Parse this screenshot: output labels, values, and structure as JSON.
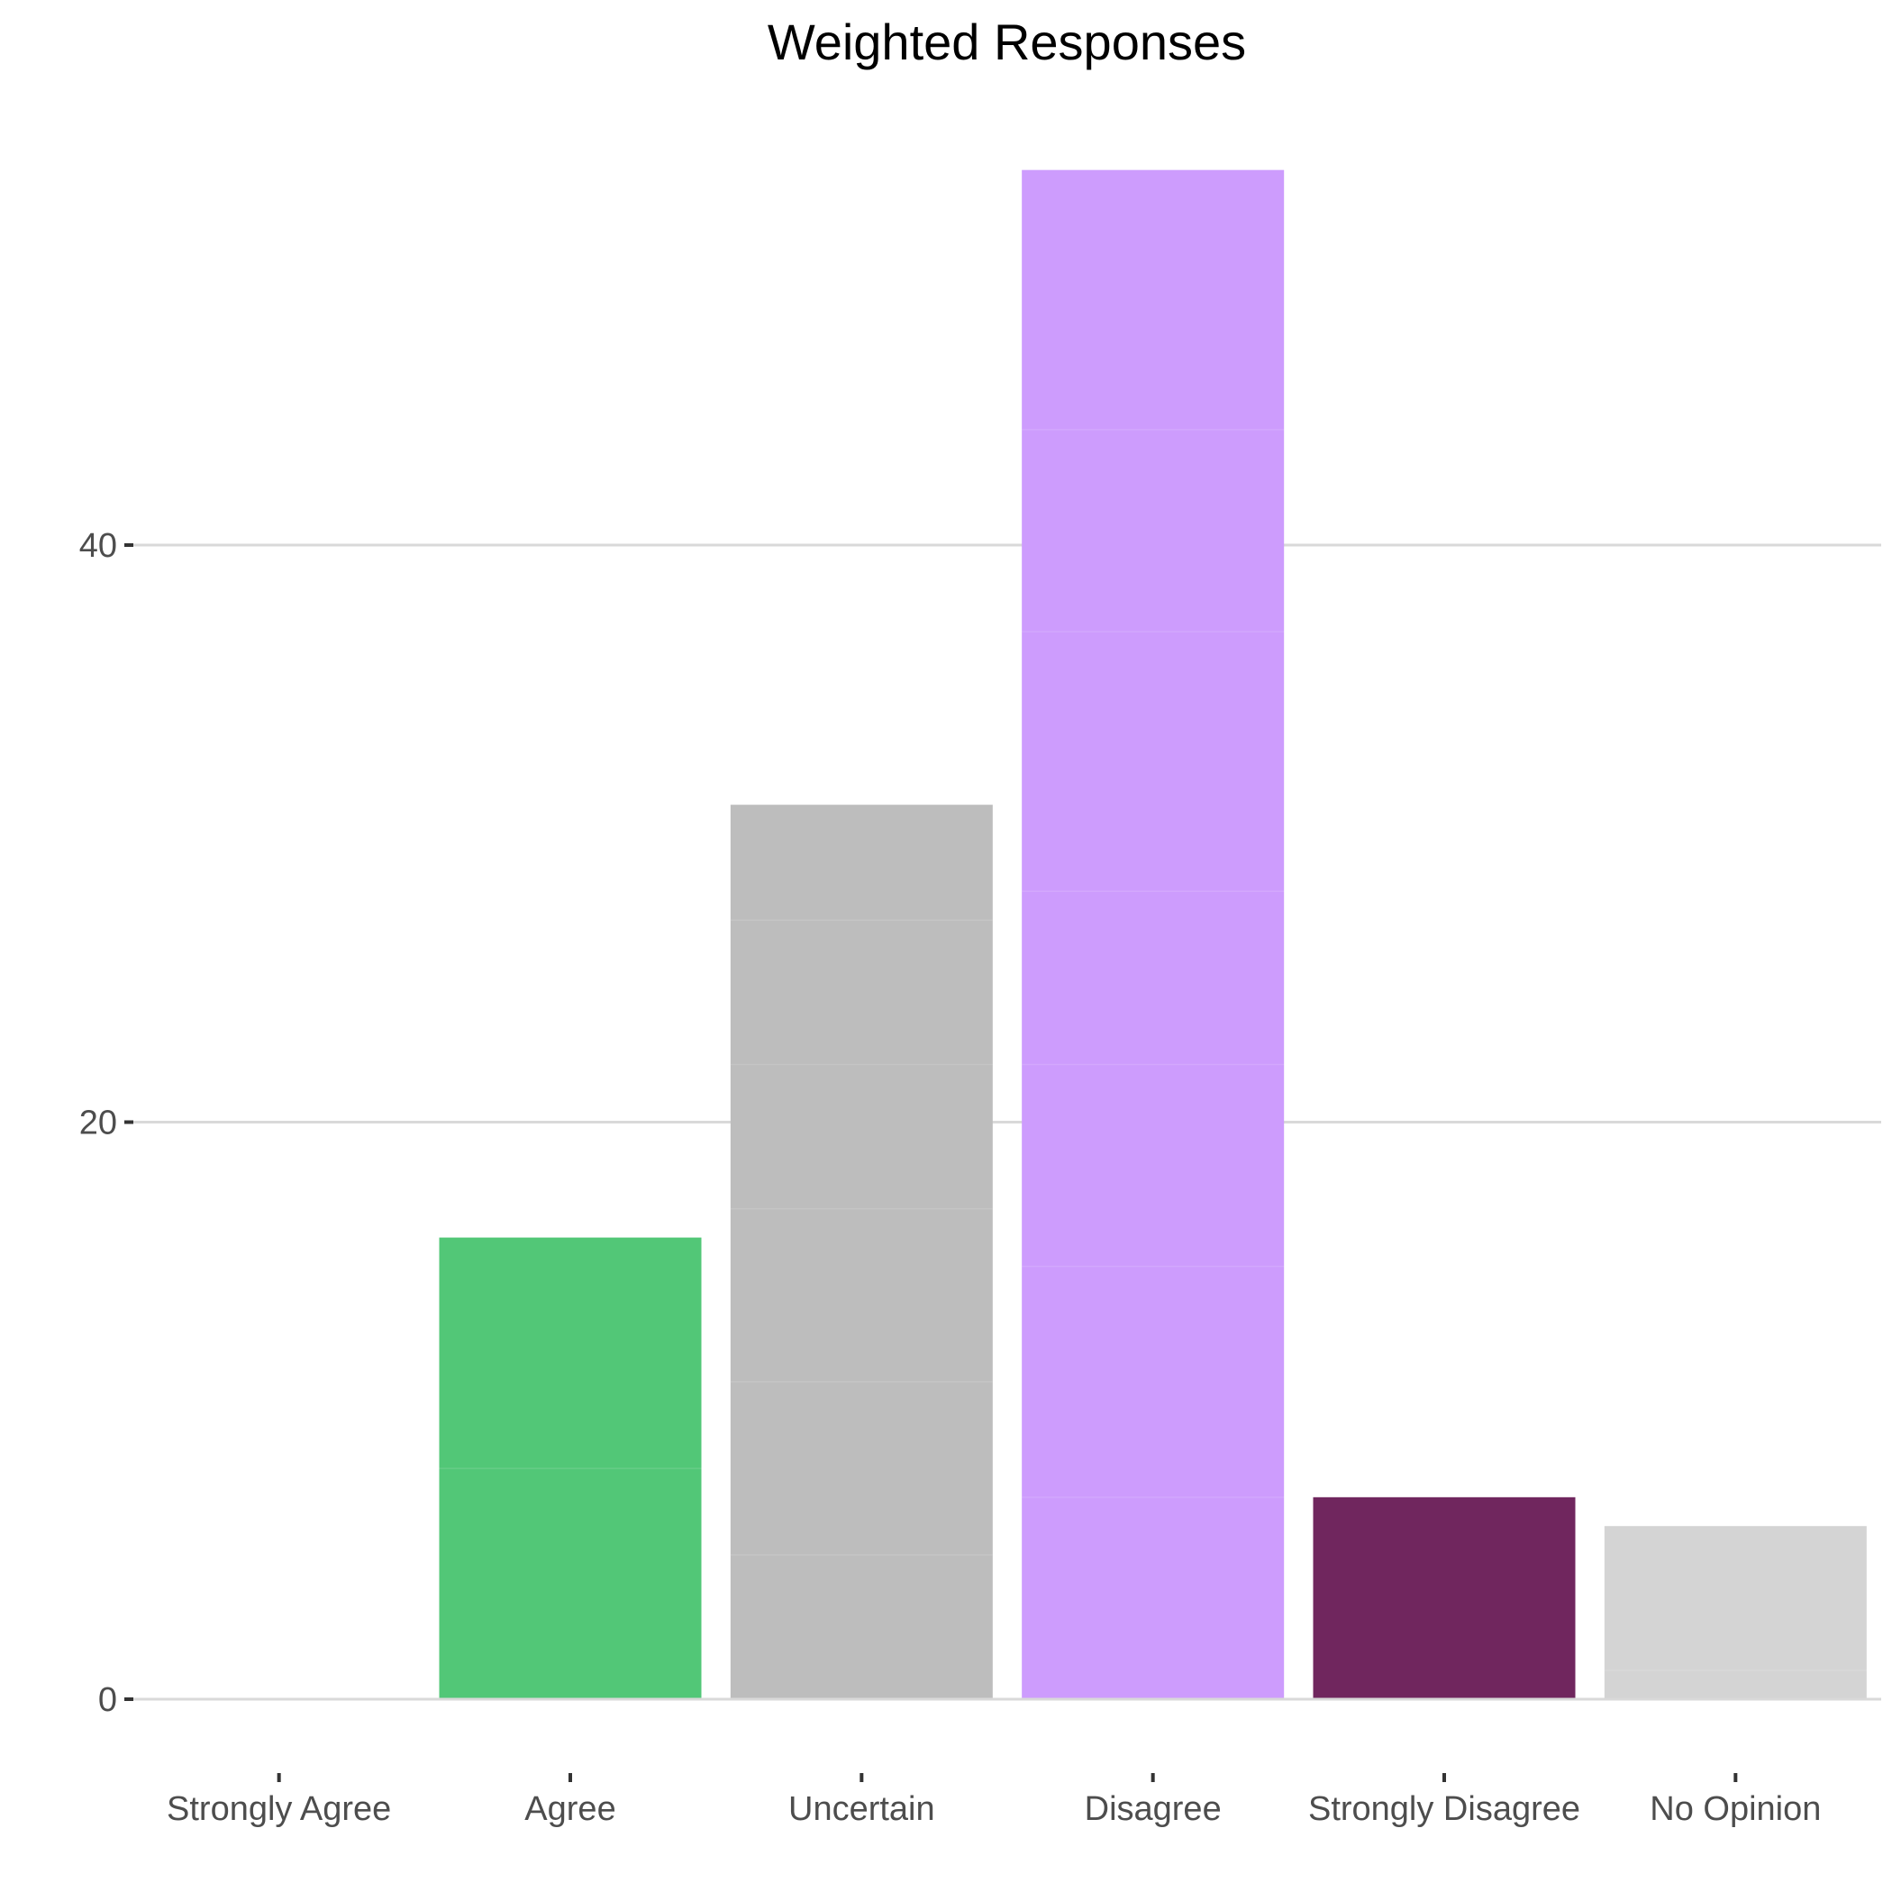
{
  "chart_data": {
    "type": "bar",
    "title": "Weighted Responses",
    "xlabel": "",
    "ylabel": "",
    "categories": [
      "Strongly Agree",
      "Agree",
      "Uncertain",
      "Disagree",
      "Strongly Disagree",
      "No Opinion"
    ],
    "values": [
      0,
      16,
      31,
      53,
      7,
      6
    ],
    "colors": [
      "#ffffff",
      "#52c777",
      "#bdbdbd",
      "#cd9cfd",
      "#70265e",
      "#d4d4d4"
    ],
    "segments": [
      [],
      [
        8,
        8
      ],
      [
        5,
        6,
        6,
        5,
        5,
        4
      ],
      [
        7,
        8,
        7,
        6,
        9,
        7,
        9
      ],
      [
        7
      ],
      [
        1,
        5
      ]
    ],
    "yticks": [
      0,
      20,
      40
    ],
    "ylim": [
      0,
      55
    ],
    "grid": true
  }
}
